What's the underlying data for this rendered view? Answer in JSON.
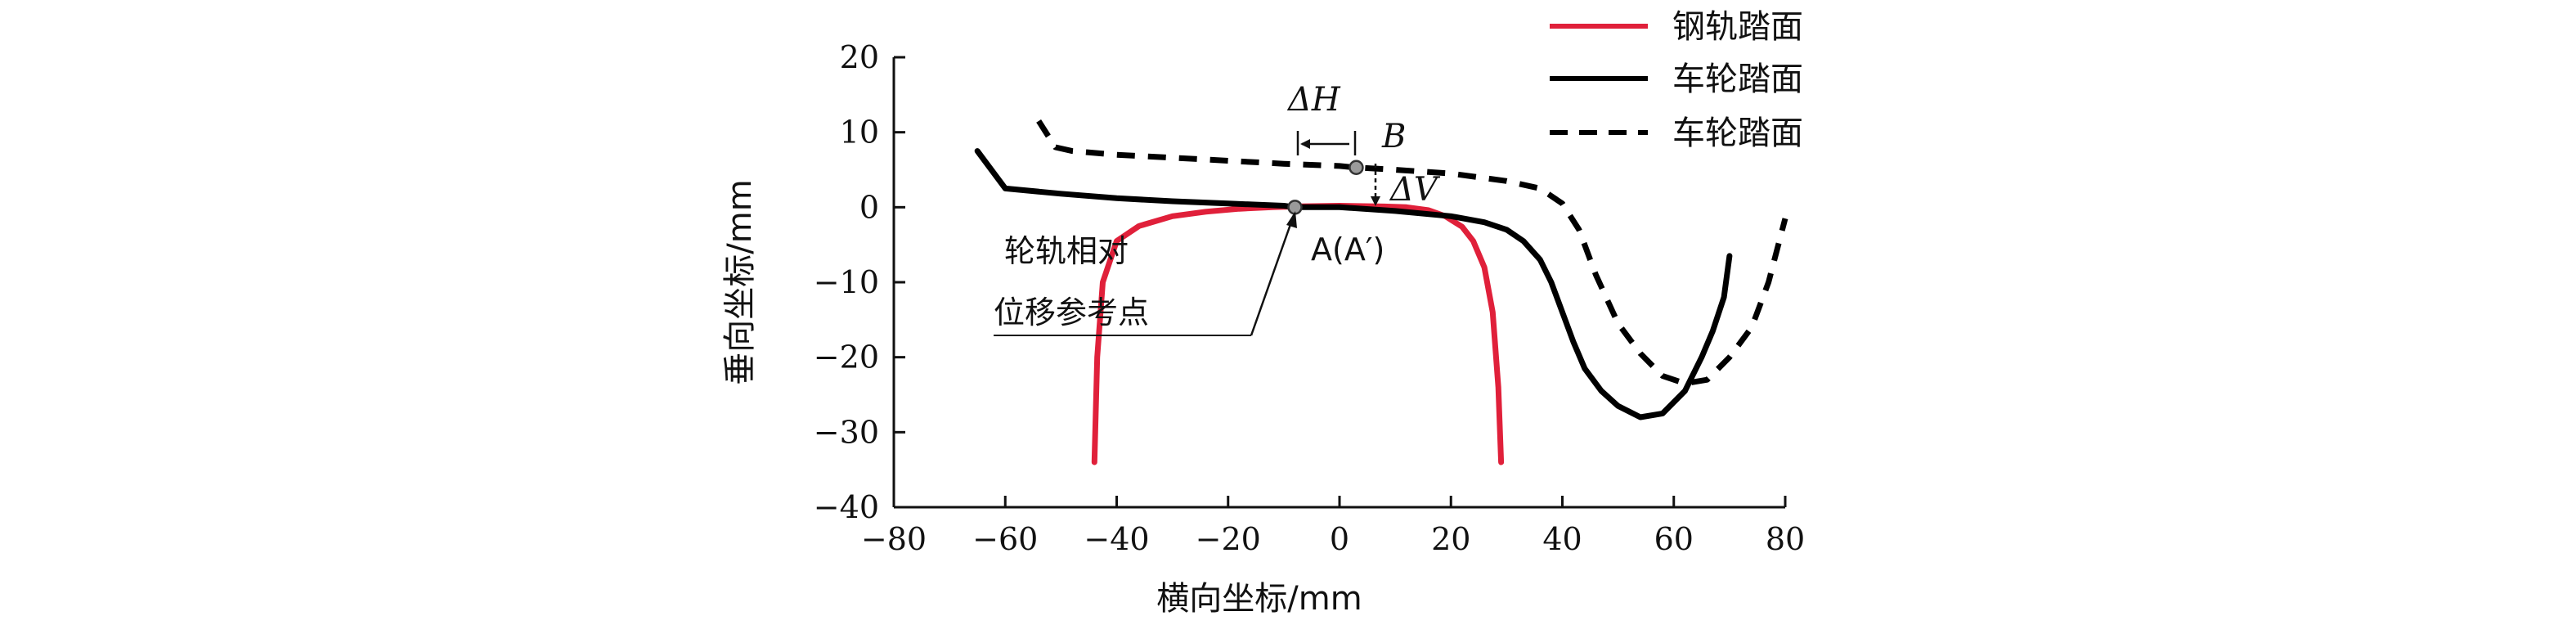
{
  "chart_data": {
    "type": "line",
    "xlabel": "横向坐标/mm",
    "ylabel": "垂向坐标/mm",
    "xlim": [
      -80,
      80
    ],
    "ylim": [
      -40,
      20
    ],
    "xticks": [
      -80,
      -60,
      -40,
      -20,
      0,
      20,
      40,
      60,
      80
    ],
    "yticks": [
      20,
      10,
      0,
      -10,
      -20,
      -30,
      -40
    ],
    "xtick_labels": [
      "−80",
      "−60",
      "−40",
      "−20",
      "0",
      "20",
      "40",
      "60",
      "80"
    ],
    "ytick_labels": [
      "20",
      "10",
      "0",
      "−10",
      "−20",
      "−30",
      "−40"
    ],
    "legend_position": "top-right",
    "series": [
      {
        "name": "钢轨踏面",
        "color": "#e0203a",
        "style": "solid",
        "x": [
          -44,
          -43.5,
          -42.5,
          -40,
          -36,
          -30,
          -24,
          -18,
          -12,
          -8,
          0,
          8,
          12,
          16,
          19,
          22,
          24,
          26,
          27.5,
          28.5,
          29
        ],
        "y": [
          -34,
          -20,
          -10,
          -4.5,
          -2.5,
          -1.2,
          -0.6,
          -0.2,
          0,
          0.1,
          0.2,
          0.1,
          0,
          -0.4,
          -1.2,
          -2.6,
          -4.5,
          -8,
          -14,
          -24,
          -34
        ]
      },
      {
        "name": "车轮踏面",
        "color": "#000000",
        "style": "solid",
        "x": [
          -65,
          -60,
          -50,
          -40,
          -30,
          -20,
          -10,
          -8,
          0,
          10,
          20,
          26,
          30,
          33,
          36,
          38,
          40,
          42,
          44,
          47,
          50,
          54,
          58,
          62,
          65,
          67,
          69,
          70
        ],
        "y": [
          7.5,
          2.5,
          1.8,
          1.2,
          0.8,
          0.5,
          0.2,
          0,
          0,
          -0.5,
          -1.2,
          -2,
          -3,
          -4.5,
          -7,
          -10,
          -14,
          -18,
          -21.5,
          -24.5,
          -26.5,
          -28,
          -27.5,
          -24.5,
          -20,
          -16.5,
          -12,
          -6.5
        ]
      },
      {
        "name": "车轮踏面",
        "color": "#000000",
        "style": "dashed",
        "x": [
          -54,
          -51,
          -48,
          -40,
          -30,
          -20,
          -10,
          0,
          3,
          10,
          20,
          30,
          36,
          40,
          43,
          46,
          50,
          54,
          58,
          62,
          66,
          70,
          74,
          77,
          80
        ],
        "y": [
          11.5,
          8,
          7.5,
          7,
          6.6,
          6.2,
          5.8,
          5.5,
          5.3,
          5,
          4.5,
          3.5,
          2.5,
          0.5,
          -3,
          -9,
          -15.5,
          -19.5,
          -22.5,
          -23.5,
          -23,
          -20,
          -16,
          -10,
          -1.5
        ]
      }
    ],
    "points": [
      {
        "label": "A(A′)",
        "x": -8,
        "y": 0
      },
      {
        "label": "B",
        "x": 3,
        "y": 5.3
      }
    ],
    "annotations": {
      "delta_h": "ΔH",
      "delta_v": "ΔV",
      "point_b": "B",
      "point_a": "A(A′)",
      "ref_line1": "轮轨相对",
      "ref_line2": "位移参考点"
    }
  },
  "colors": {
    "rail": "#e0203a",
    "wheel": "#000000",
    "marker": "#9a9a9a"
  }
}
